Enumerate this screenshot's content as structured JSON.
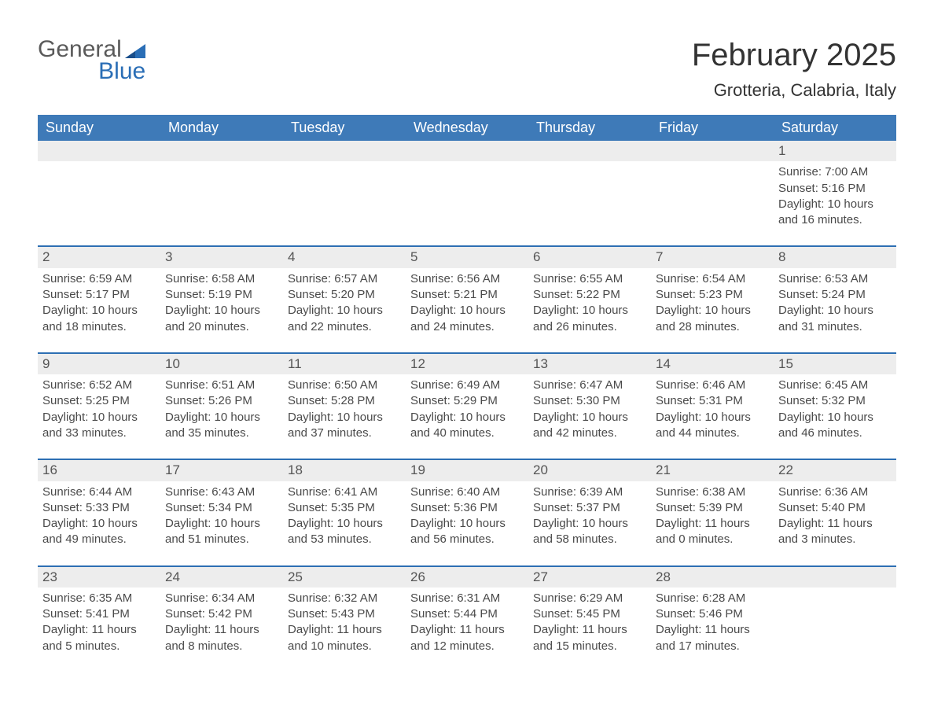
{
  "logo": {
    "line1": "General",
    "line2": "Blue"
  },
  "title": "February 2025",
  "location": "Grotteria, Calabria, Italy",
  "colors": {
    "header_bg": "#3e7ab8",
    "divider": "#2d6fb3",
    "daynum_bg": "#ededed",
    "page_bg": "#ffffff",
    "logo_blue": "#2a6eb6"
  },
  "weekdays": [
    "Sunday",
    "Monday",
    "Tuesday",
    "Wednesday",
    "Thursday",
    "Friday",
    "Saturday"
  ],
  "weeks": [
    [
      null,
      null,
      null,
      null,
      null,
      null,
      {
        "n": "1",
        "sunrise": "7:00 AM",
        "sunset": "5:16 PM",
        "dl": "10 hours and 16 minutes."
      }
    ],
    [
      {
        "n": "2",
        "sunrise": "6:59 AM",
        "sunset": "5:17 PM",
        "dl": "10 hours and 18 minutes."
      },
      {
        "n": "3",
        "sunrise": "6:58 AM",
        "sunset": "5:19 PM",
        "dl": "10 hours and 20 minutes."
      },
      {
        "n": "4",
        "sunrise": "6:57 AM",
        "sunset": "5:20 PM",
        "dl": "10 hours and 22 minutes."
      },
      {
        "n": "5",
        "sunrise": "6:56 AM",
        "sunset": "5:21 PM",
        "dl": "10 hours and 24 minutes."
      },
      {
        "n": "6",
        "sunrise": "6:55 AM",
        "sunset": "5:22 PM",
        "dl": "10 hours and 26 minutes."
      },
      {
        "n": "7",
        "sunrise": "6:54 AM",
        "sunset": "5:23 PM",
        "dl": "10 hours and 28 minutes."
      },
      {
        "n": "8",
        "sunrise": "6:53 AM",
        "sunset": "5:24 PM",
        "dl": "10 hours and 31 minutes."
      }
    ],
    [
      {
        "n": "9",
        "sunrise": "6:52 AM",
        "sunset": "5:25 PM",
        "dl": "10 hours and 33 minutes."
      },
      {
        "n": "10",
        "sunrise": "6:51 AM",
        "sunset": "5:26 PM",
        "dl": "10 hours and 35 minutes."
      },
      {
        "n": "11",
        "sunrise": "6:50 AM",
        "sunset": "5:28 PM",
        "dl": "10 hours and 37 minutes."
      },
      {
        "n": "12",
        "sunrise": "6:49 AM",
        "sunset": "5:29 PM",
        "dl": "10 hours and 40 minutes."
      },
      {
        "n": "13",
        "sunrise": "6:47 AM",
        "sunset": "5:30 PM",
        "dl": "10 hours and 42 minutes."
      },
      {
        "n": "14",
        "sunrise": "6:46 AM",
        "sunset": "5:31 PM",
        "dl": "10 hours and 44 minutes."
      },
      {
        "n": "15",
        "sunrise": "6:45 AM",
        "sunset": "5:32 PM",
        "dl": "10 hours and 46 minutes."
      }
    ],
    [
      {
        "n": "16",
        "sunrise": "6:44 AM",
        "sunset": "5:33 PM",
        "dl": "10 hours and 49 minutes."
      },
      {
        "n": "17",
        "sunrise": "6:43 AM",
        "sunset": "5:34 PM",
        "dl": "10 hours and 51 minutes."
      },
      {
        "n": "18",
        "sunrise": "6:41 AM",
        "sunset": "5:35 PM",
        "dl": "10 hours and 53 minutes."
      },
      {
        "n": "19",
        "sunrise": "6:40 AM",
        "sunset": "5:36 PM",
        "dl": "10 hours and 56 minutes."
      },
      {
        "n": "20",
        "sunrise": "6:39 AM",
        "sunset": "5:37 PM",
        "dl": "10 hours and 58 minutes."
      },
      {
        "n": "21",
        "sunrise": "6:38 AM",
        "sunset": "5:39 PM",
        "dl": "11 hours and 0 minutes."
      },
      {
        "n": "22",
        "sunrise": "6:36 AM",
        "sunset": "5:40 PM",
        "dl": "11 hours and 3 minutes."
      }
    ],
    [
      {
        "n": "23",
        "sunrise": "6:35 AM",
        "sunset": "5:41 PM",
        "dl": "11 hours and 5 minutes."
      },
      {
        "n": "24",
        "sunrise": "6:34 AM",
        "sunset": "5:42 PM",
        "dl": "11 hours and 8 minutes."
      },
      {
        "n": "25",
        "sunrise": "6:32 AM",
        "sunset": "5:43 PM",
        "dl": "11 hours and 10 minutes."
      },
      {
        "n": "26",
        "sunrise": "6:31 AM",
        "sunset": "5:44 PM",
        "dl": "11 hours and 12 minutes."
      },
      {
        "n": "27",
        "sunrise": "6:29 AM",
        "sunset": "5:45 PM",
        "dl": "11 hours and 15 minutes."
      },
      {
        "n": "28",
        "sunrise": "6:28 AM",
        "sunset": "5:46 PM",
        "dl": "11 hours and 17 minutes."
      },
      null
    ]
  ],
  "labels": {
    "sunrise_prefix": "Sunrise: ",
    "sunset_prefix": "Sunset: ",
    "daylight_prefix": "Daylight: "
  }
}
